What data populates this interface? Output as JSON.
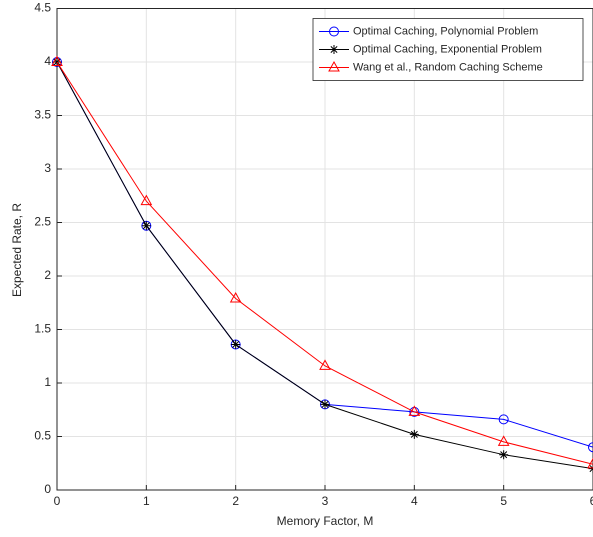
{
  "chart_data": {
    "type": "line",
    "x_label": "Memory Factor, M",
    "y_label": "Expected Rate, R",
    "x": [
      0,
      1,
      2,
      3,
      4,
      5,
      6
    ],
    "series": [
      {
        "name": "Optimal Caching, Polynomial Problem",
        "color": "#0000ff",
        "marker": "circle",
        "values": [
          4,
          2.47,
          1.36,
          0.8,
          0.73,
          0.66,
          0.4
        ]
      },
      {
        "name": "Optimal Caching, Exponential Problem",
        "color": "#000000",
        "marker": "star",
        "values": [
          4,
          2.47,
          1.36,
          0.8,
          0.52,
          0.33,
          0.2
        ]
      },
      {
        "name": "Wang et al., Random Caching Scheme",
        "color": "#ff0000",
        "marker": "triangle",
        "values": [
          4,
          2.7,
          1.79,
          1.16,
          0.73,
          0.45,
          0.24
        ]
      }
    ],
    "xlim": [
      0,
      6
    ],
    "xticks": [
      0,
      1,
      2,
      3,
      4,
      5,
      6
    ],
    "ylim": [
      0,
      4.5
    ],
    "yticks": [
      0,
      0.5,
      1,
      1.5,
      2,
      2.5,
      3,
      3.5,
      4,
      4.5
    ],
    "grid": true,
    "legend": "top-right"
  }
}
